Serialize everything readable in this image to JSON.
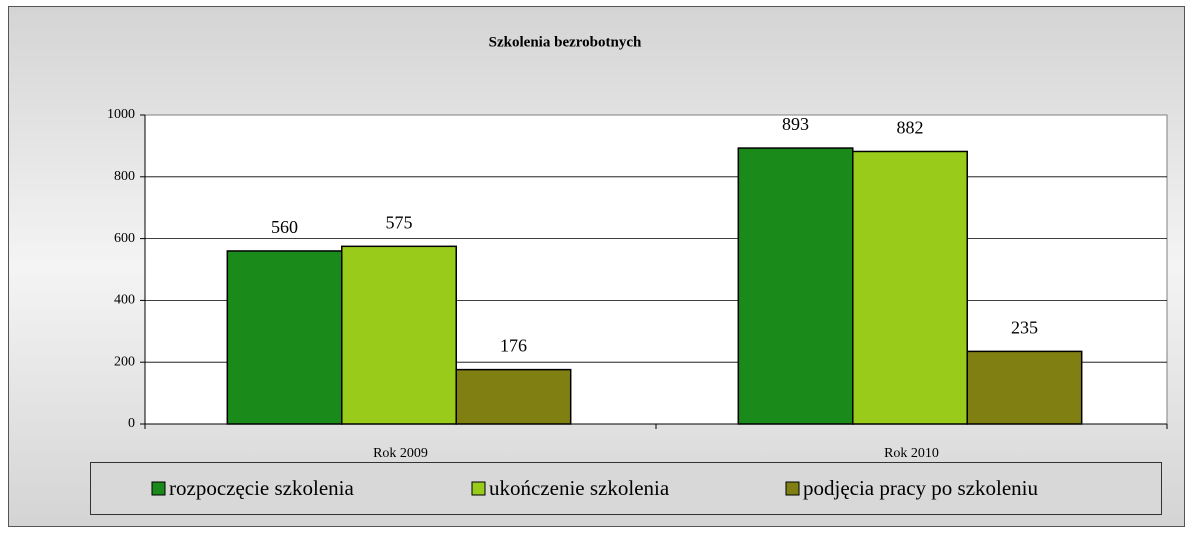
{
  "chart_data": {
    "type": "bar",
    "title": "Szkolenia bezrobotnych",
    "categories": [
      "Rok 2009",
      "Rok 2010"
    ],
    "series": [
      {
        "name": "rozpoczęcie szkolenia",
        "color": "#1a8a1a",
        "values": [
          560,
          893
        ]
      },
      {
        "name": "ukończenie szkolenia",
        "color": "#99cc1a",
        "values": [
          575,
          882
        ]
      },
      {
        "name": "podjęcia pracy po szkoleniu",
        "color": "#808012",
        "values": [
          176,
          235
        ]
      }
    ],
    "ylim": [
      0,
      1000
    ],
    "yticks": [
      0,
      200,
      400,
      600,
      800,
      1000
    ],
    "grid": true,
    "legend": "bottom"
  }
}
